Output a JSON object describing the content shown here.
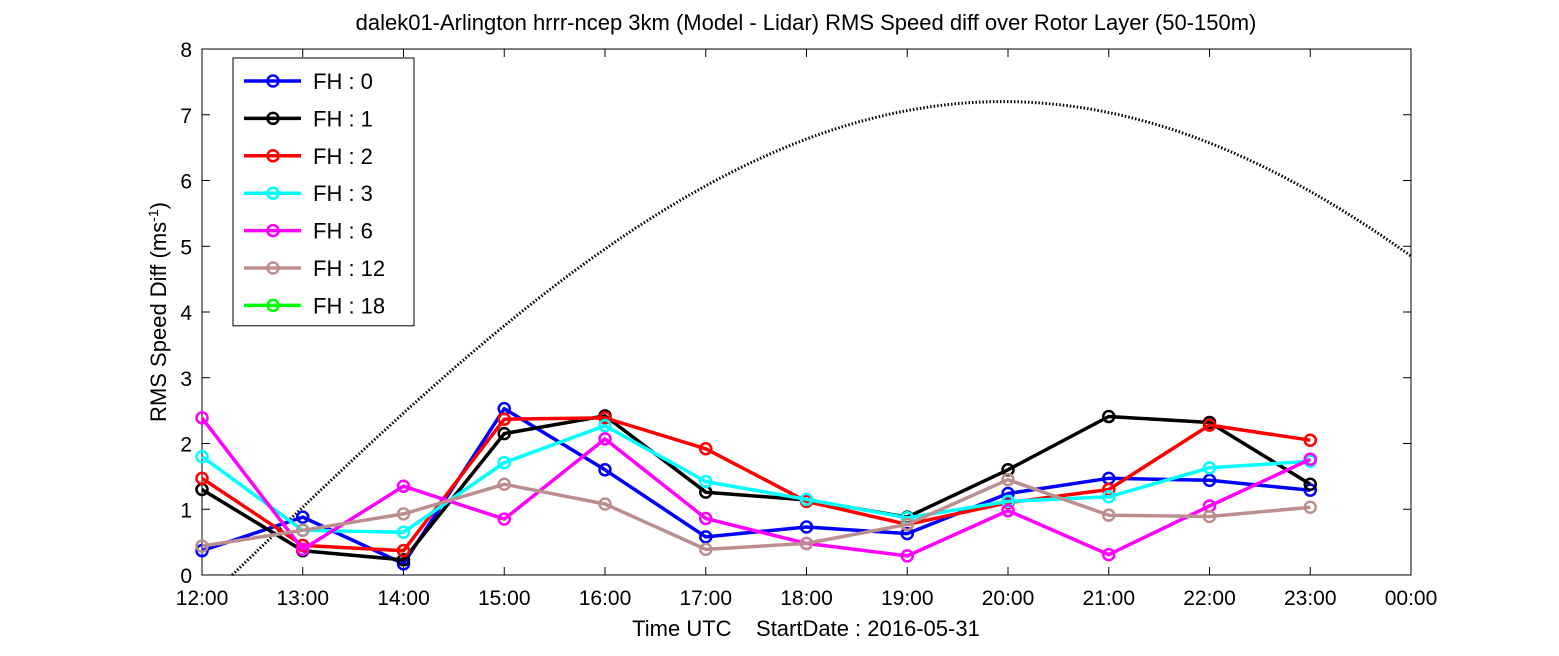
{
  "chart_data": {
    "type": "line",
    "title": "dalek01-Arlington hrrr-ncep 3km (Model - Lidar) RMS Speed diff over Rotor Layer (50-150m)",
    "xlabel": "Time UTC    StartDate : 2016-05-31",
    "ylabel": "RMS Speed Diff (ms",
    "ylabel_sup": "-1",
    "ylabel_close": ")",
    "x_ticks": [
      "12:00",
      "13:00",
      "14:00",
      "15:00",
      "16:00",
      "17:00",
      "18:00",
      "19:00",
      "20:00",
      "21:00",
      "22:00",
      "23:00",
      "00:00"
    ],
    "y_ticks": [
      "0",
      "1",
      "2",
      "3",
      "4",
      "5",
      "6",
      "7",
      "8"
    ],
    "ylim": [
      0,
      8
    ],
    "x_hours": [
      12,
      13,
      14,
      15,
      16,
      17,
      18,
      19,
      20,
      21,
      22,
      23
    ],
    "legend_position": "top-left",
    "grid": false,
    "series": [
      {
        "name": "FH : 0",
        "color": "#0000ff",
        "values": [
          0.37,
          0.88,
          0.17,
          2.53,
          1.6,
          0.58,
          0.73,
          0.63,
          1.24,
          1.47,
          1.44,
          1.29
        ]
      },
      {
        "name": "FH : 1",
        "color": "#000000",
        "values": [
          1.3,
          0.37,
          0.23,
          2.15,
          2.42,
          1.26,
          1.14,
          0.88,
          1.6,
          2.41,
          2.32,
          1.38
        ]
      },
      {
        "name": "FH : 2",
        "color": "#ff0000",
        "values": [
          1.47,
          0.45,
          0.37,
          2.37,
          2.39,
          1.92,
          1.12,
          0.77,
          1.1,
          1.3,
          2.28,
          2.05
        ]
      },
      {
        "name": "FH : 3",
        "color": "#00ffff",
        "values": [
          1.8,
          0.68,
          0.65,
          1.71,
          2.27,
          1.42,
          1.15,
          0.87,
          1.12,
          1.19,
          1.63,
          1.73
        ]
      },
      {
        "name": "FH : 6",
        "color": "#ff00ff",
        "values": [
          2.39,
          0.39,
          1.35,
          0.85,
          2.07,
          0.86,
          0.48,
          0.29,
          0.98,
          0.31,
          1.05,
          1.76
        ]
      },
      {
        "name": "FH : 12",
        "color": "#bc8f8f",
        "values": [
          0.44,
          0.68,
          0.93,
          1.38,
          1.08,
          0.39,
          0.48,
          0.77,
          1.45,
          0.91,
          0.89,
          1.03
        ]
      },
      {
        "name": "FH : 18",
        "color": "#00ff00",
        "values": []
      }
    ],
    "dotted_curve": {
      "color": "#000000",
      "peak_hour": 19.95,
      "peak_value": 7.2,
      "zero_crossing_hour": 12.3,
      "end_hour": 24
    }
  }
}
